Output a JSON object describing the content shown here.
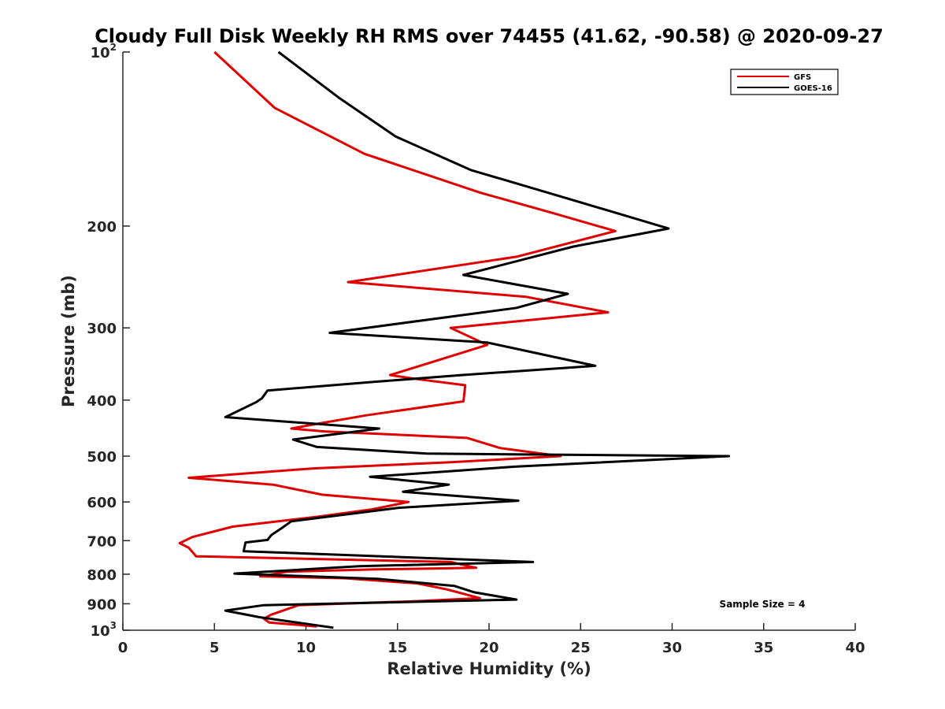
{
  "chart_data": {
    "type": "line",
    "title": "Cloudy Full Disk Weekly RH RMS over 74455 (41.62, -90.58) @ 2020-09-27",
    "xlabel": "Relative Humidity (%)",
    "ylabel": "Pressure (mb)",
    "xlim": [
      0,
      40
    ],
    "ylim": [
      100,
      1000
    ],
    "yscale": "log",
    "y_reversed": true,
    "x_ticks": [
      "0",
      "5",
      "10",
      "15",
      "20",
      "25",
      "30",
      "35",
      "40"
    ],
    "x_tick_values": [
      0,
      5,
      10,
      15,
      20,
      25,
      30,
      35,
      40
    ],
    "y_ticks": [
      {
        "value": 100,
        "base": "10",
        "sup": "2"
      },
      {
        "value": 200,
        "base": "200",
        "sup": ""
      },
      {
        "value": 300,
        "base": "300",
        "sup": ""
      },
      {
        "value": 400,
        "base": "400",
        "sup": ""
      },
      {
        "value": 500,
        "base": "500",
        "sup": ""
      },
      {
        "value": 600,
        "base": "600",
        "sup": ""
      },
      {
        "value": 700,
        "base": "700",
        "sup": ""
      },
      {
        "value": 800,
        "base": "800",
        "sup": ""
      },
      {
        "value": 900,
        "base": "900",
        "sup": ""
      },
      {
        "value": 1000,
        "base": "10",
        "sup": "3"
      }
    ],
    "legend_position": "top-right",
    "annotation": "Sample Size = 4",
    "series": [
      {
        "name": "GFS",
        "color": "#e00000",
        "points": [
          [
            5.0,
            100
          ],
          [
            8.3,
            125
          ],
          [
            13.2,
            150
          ],
          [
            19.5,
            175
          ],
          [
            23.5,
            190
          ],
          [
            26.9,
            204
          ],
          [
            21.5,
            226
          ],
          [
            12.3,
            250
          ],
          [
            22.0,
            265
          ],
          [
            26.5,
            282
          ],
          [
            17.9,
            300
          ],
          [
            19.9,
            321
          ],
          [
            16.6,
            346
          ],
          [
            14.6,
            362
          ],
          [
            16.1,
            368
          ],
          [
            18.7,
            377
          ],
          [
            18.6,
            402
          ],
          [
            13.3,
            425
          ],
          [
            10.7,
            439
          ],
          [
            9.2,
            448
          ],
          [
            11.0,
            453
          ],
          [
            18.8,
            465
          ],
          [
            20.6,
            484
          ],
          [
            23.9,
            500
          ],
          [
            18.0,
            512
          ],
          [
            10.4,
            525
          ],
          [
            3.6,
            545
          ],
          [
            8.2,
            560
          ],
          [
            10.9,
            583
          ],
          [
            15.6,
            600
          ],
          [
            13.6,
            618
          ],
          [
            10.7,
            636
          ],
          [
            6.0,
            662
          ],
          [
            3.8,
            690
          ],
          [
            3.1,
            707
          ],
          [
            3.6,
            720
          ],
          [
            4.0,
            745
          ],
          [
            17.9,
            762
          ],
          [
            19.3,
            780
          ],
          [
            13.8,
            785
          ],
          [
            9.0,
            792
          ],
          [
            7.5,
            807
          ],
          [
            12.1,
            813
          ],
          [
            16.1,
            830
          ],
          [
            17.7,
            850
          ],
          [
            19.5,
            880
          ],
          [
            16.3,
            890
          ],
          [
            9.6,
            905
          ],
          [
            8.1,
            940
          ],
          [
            7.7,
            955
          ],
          [
            8.0,
            970
          ],
          [
            10.6,
            985
          ]
        ]
      },
      {
        "name": "GOES-16",
        "color": "#000000",
        "points": [
          [
            8.5,
            100
          ],
          [
            11.8,
            120
          ],
          [
            14.9,
            140
          ],
          [
            19.0,
            160
          ],
          [
            24.5,
            180
          ],
          [
            29.8,
            202
          ],
          [
            24.6,
            217
          ],
          [
            18.6,
            243
          ],
          [
            24.3,
            262
          ],
          [
            21.5,
            277
          ],
          [
            11.3,
            306
          ],
          [
            19.9,
            318
          ],
          [
            25.8,
            349
          ],
          [
            18.5,
            362
          ],
          [
            13.7,
            372
          ],
          [
            7.9,
            385
          ],
          [
            7.6,
            397
          ],
          [
            7.3,
            403
          ],
          [
            5.6,
            428
          ],
          [
            14.0,
            448
          ],
          [
            9.3,
            468
          ],
          [
            10.6,
            482
          ],
          [
            16.6,
            495
          ],
          [
            33.1,
            500
          ],
          [
            21.5,
            521
          ],
          [
            13.5,
            543
          ],
          [
            17.8,
            560
          ],
          [
            15.3,
            576
          ],
          [
            21.6,
            597
          ],
          [
            15.1,
            614
          ],
          [
            9.2,
            648
          ],
          [
            8.7,
            665
          ],
          [
            8.1,
            685
          ],
          [
            7.9,
            698
          ],
          [
            6.7,
            705
          ],
          [
            6.6,
            730
          ],
          [
            22.4,
            762
          ],
          [
            12.9,
            775
          ],
          [
            6.1,
            798
          ],
          [
            13.9,
            815
          ],
          [
            18.1,
            838
          ],
          [
            19.2,
            860
          ],
          [
            21.5,
            885
          ],
          [
            7.7,
            905
          ],
          [
            5.6,
            925
          ],
          [
            7.5,
            950
          ],
          [
            11.5,
            990
          ]
        ]
      }
    ]
  }
}
